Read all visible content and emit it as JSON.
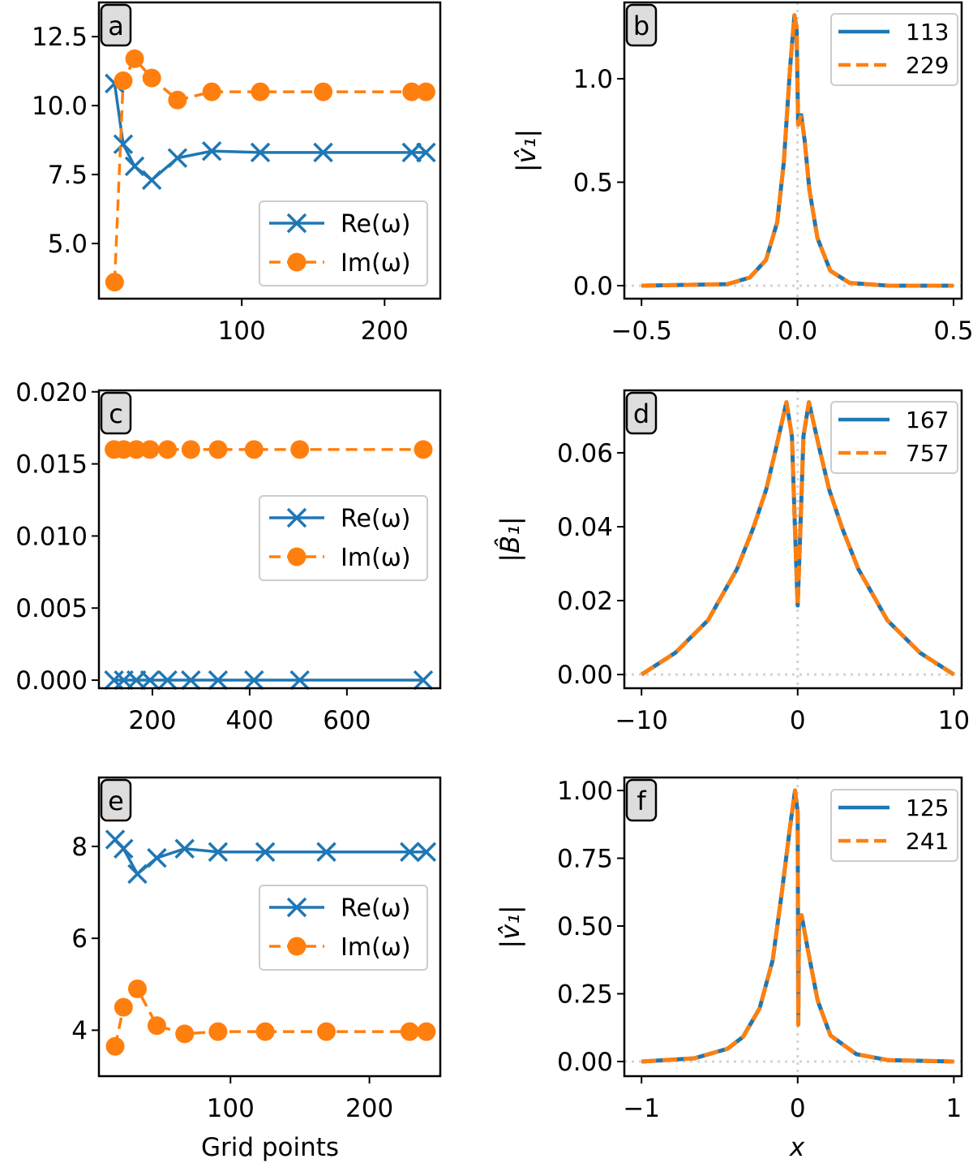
{
  "colors": {
    "re": "#1f77b4",
    "im": "#ff7f0e",
    "reference": "#d3d3d3",
    "label_box": "#dddddd"
  },
  "chart_data": [
    {
      "panel": "a",
      "type": "line",
      "xlabel": "",
      "ylabel": "",
      "xlim": [
        0,
        239
      ],
      "ylim": [
        3.0,
        13.74
      ],
      "xticks": [
        100,
        200
      ],
      "xtick_labels": [
        "100",
        "200"
      ],
      "yticks": [
        5.0,
        7.5,
        10.0,
        12.5
      ],
      "ytick_labels": [
        "5.0",
        "7.5",
        "10.0",
        "12.5"
      ],
      "legend_placement": "lower-right",
      "x": [
        11,
        17,
        25,
        37,
        55,
        79,
        113,
        157,
        219,
        229
      ],
      "series": [
        {
          "name": "Re(ω)",
          "marker": "x",
          "style": "solid",
          "values": [
            10.8,
            8.6,
            7.8,
            7.3,
            8.1,
            8.35,
            8.3,
            8.3,
            8.3,
            8.3
          ]
        },
        {
          "name": "Im(ω)",
          "marker": "o",
          "style": "dashed",
          "values": [
            3.6,
            10.9,
            11.7,
            11.0,
            10.2,
            10.5,
            10.5,
            10.5,
            10.5,
            10.5
          ]
        }
      ]
    },
    {
      "panel": "b",
      "type": "line",
      "xlabel": "",
      "ylabel": "|v̂₁|",
      "xlim": [
        -0.555,
        0.526
      ],
      "ylim": [
        -0.063,
        1.369
      ],
      "xticks": [
        -0.5,
        0,
        0.5
      ],
      "xtick_labels": [
        "−0.5",
        "0.0",
        "0.5"
      ],
      "yticks": [
        0,
        0.5,
        1.0
      ],
      "ytick_labels": [
        "0.0",
        "0.5",
        "1.0"
      ],
      "reference_lines": {
        "x": 0,
        "y": 0
      },
      "legend_placement": "upper-right",
      "x": [
        -0.5,
        -0.225,
        -0.153,
        -0.101,
        -0.065,
        -0.044,
        -0.024,
        -0.01,
        -0.003,
        0.002,
        0.012,
        0.023,
        0.038,
        0.064,
        0.105,
        0.167,
        0.29,
        0.5
      ],
      "series": [
        {
          "name": "113",
          "style": "solid",
          "values": [
            0,
            0.007,
            0.039,
            0.124,
            0.307,
            0.595,
            1.05,
            1.307,
            1.248,
            0.778,
            0.824,
            0.7,
            0.464,
            0.229,
            0.072,
            0.013,
            0,
            0
          ]
        },
        {
          "name": "229",
          "style": "dashed",
          "values": [
            0,
            0.007,
            0.039,
            0.124,
            0.307,
            0.595,
            1.05,
            1.307,
            1.248,
            0.778,
            0.824,
            0.7,
            0.464,
            0.229,
            0.072,
            0.013,
            0,
            0
          ]
        }
      ]
    },
    {
      "panel": "c",
      "type": "line",
      "xlabel": "",
      "ylabel": "",
      "xlim": [
        90,
        792
      ],
      "ylim": [
        -0.00056,
        0.0201
      ],
      "xticks": [
        200,
        400,
        600
      ],
      "xtick_labels": [
        "200",
        "400",
        "600"
      ],
      "yticks": [
        0,
        0.005,
        0.01,
        0.015,
        0.02
      ],
      "ytick_labels": [
        "0.000",
        "0.005",
        "0.010",
        "0.015",
        "0.020"
      ],
      "legend_placement": "center-right",
      "x": [
        121,
        141,
        167,
        195,
        231,
        279,
        335,
        409,
        503,
        757
      ],
      "series": [
        {
          "name": "Re(ω)",
          "marker": "x",
          "style": "solid",
          "values": [
            0,
            0,
            0,
            0,
            0,
            0,
            0,
            0,
            0,
            0
          ]
        },
        {
          "name": "Im(ω)",
          "marker": "o",
          "style": "dashed",
          "values": [
            0.016,
            0.016,
            0.016,
            0.016,
            0.016,
            0.016,
            0.016,
            0.016,
            0.016,
            0.016
          ]
        }
      ]
    },
    {
      "panel": "d",
      "type": "line",
      "xlabel": "",
      "ylabel": "|B̂₁|",
      "xlim": [
        -11.1,
        10.5
      ],
      "ylim": [
        -0.0037,
        0.0769
      ],
      "xticks": [
        -10,
        0,
        10
      ],
      "xtick_labels": [
        "−10",
        "0",
        "10"
      ],
      "yticks": [
        0,
        0.02,
        0.04,
        0.06
      ],
      "ytick_labels": [
        "0.00",
        "0.02",
        "0.04",
        "0.06"
      ],
      "reference_lines": {
        "x": 0,
        "y": 0
      },
      "legend_placement": "upper-right",
      "x": [
        -10,
        -7.83,
        -5.74,
        -3.88,
        -2.85,
        -2.02,
        -1.4,
        -0.72,
        -0.37,
        -0.17,
        0,
        0.17,
        0.37,
        0.72,
        1.4,
        2.02,
        2.85,
        3.88,
        5.74,
        7.83,
        10
      ],
      "series": [
        {
          "name": "167",
          "style": "solid",
          "values": [
            0,
            0.0059,
            0.0147,
            0.0286,
            0.0396,
            0.05,
            0.061,
            0.0737,
            0.0645,
            0.039,
            0.0187,
            0.039,
            0.0645,
            0.0737,
            0.061,
            0.05,
            0.0396,
            0.0286,
            0.0147,
            0.0059,
            0
          ]
        },
        {
          "name": "757",
          "style": "dashed",
          "values": [
            0,
            0.0059,
            0.0147,
            0.0286,
            0.0396,
            0.05,
            0.061,
            0.0737,
            0.0645,
            0.039,
            0.0187,
            0.039,
            0.0645,
            0.0737,
            0.061,
            0.05,
            0.0396,
            0.0286,
            0.0147,
            0.0059,
            0
          ]
        }
      ]
    },
    {
      "panel": "e",
      "type": "line",
      "xlabel": "Grid points",
      "ylabel": "",
      "xlim": [
        5.3,
        251
      ],
      "ylim": [
        3.0,
        9.5
      ],
      "xticks": [
        100,
        200
      ],
      "xtick_labels": [
        "100",
        "200"
      ],
      "yticks": [
        4,
        6,
        8
      ],
      "ytick_labels": [
        "4",
        "6",
        "8"
      ],
      "legend_placement": "center-right",
      "x": [
        17,
        23,
        33,
        47,
        67,
        91,
        125,
        169,
        229,
        241
      ],
      "series": [
        {
          "name": "Re(ω)",
          "marker": "x",
          "style": "solid",
          "values": [
            8.15,
            7.95,
            7.4,
            7.75,
            7.95,
            7.88,
            7.88,
            7.88,
            7.88,
            7.88
          ]
        },
        {
          "name": "Im(ω)",
          "marker": "o",
          "style": "dashed",
          "values": [
            3.65,
            4.5,
            4.9,
            4.1,
            3.92,
            3.97,
            3.97,
            3.97,
            3.97,
            3.97
          ]
        }
      ]
    },
    {
      "panel": "f",
      "type": "line",
      "xlabel": "x",
      "ylabel": "|v̂₁|",
      "xlim": [
        -1.11,
        1.05
      ],
      "ylim": [
        -0.054,
        1.048
      ],
      "xticks": [
        -1,
        0,
        1
      ],
      "xtick_labels": [
        "−1",
        "0",
        "1"
      ],
      "yticks": [
        0,
        0.25,
        0.5,
        0.75,
        1.0
      ],
      "ytick_labels": [
        "0.00",
        "0.25",
        "0.50",
        "0.75",
        "1.00"
      ],
      "reference_lines": {
        "x": 0,
        "y": 0
      },
      "legend_placement": "upper-right",
      "x": [
        -1,
        -0.66,
        -0.45,
        -0.35,
        -0.244,
        -0.16,
        -0.1,
        -0.048,
        -0.017,
        0,
        0.004,
        0.008,
        0.025,
        0.066,
        0.128,
        0.21,
        0.376,
        0.58,
        1
      ],
      "series": [
        {
          "name": "125",
          "style": "solid",
          "values": [
            0,
            0.012,
            0.047,
            0.091,
            0.196,
            0.374,
            0.63,
            0.87,
            1.0,
            0.92,
            0.136,
            0.51,
            0.54,
            0.41,
            0.225,
            0.096,
            0.027,
            0.005,
            0
          ]
        },
        {
          "name": "241",
          "style": "dashed",
          "values": [
            0,
            0.012,
            0.047,
            0.091,
            0.196,
            0.374,
            0.63,
            0.87,
            1.0,
            0.92,
            0.136,
            0.51,
            0.54,
            0.41,
            0.225,
            0.096,
            0.027,
            0.005,
            0
          ]
        }
      ]
    }
  ]
}
